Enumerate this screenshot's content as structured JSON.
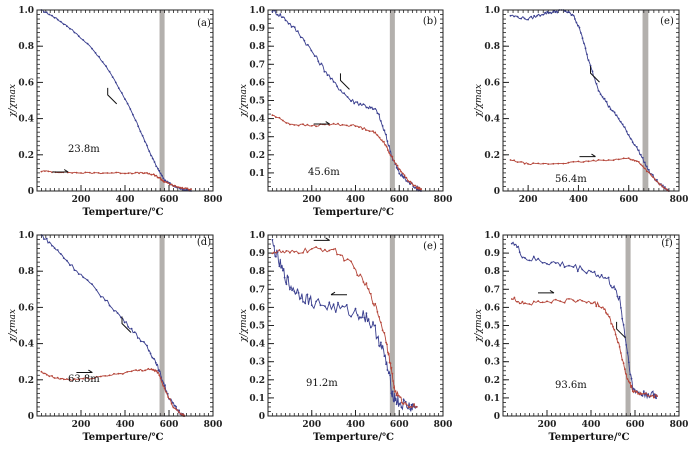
{
  "colors": {
    "cooling": "#3a3f8f",
    "heating": "#b5463a",
    "band": "#b3b0ad",
    "axis": "#222222"
  },
  "chart_data": [
    {
      "type": "line",
      "panel_label": "(a)",
      "depth": "23.8m",
      "xlabel": "Temperture/℃",
      "ylabel": "χ/χmax",
      "xlim": [
        0,
        800
      ],
      "ylim": [
        0,
        1.0
      ],
      "xticks": [
        200,
        400,
        600,
        800
      ],
      "yticks": [
        0,
        0.2,
        0.4,
        0.6,
        0.8,
        1.0
      ],
      "band": [
        557,
        580
      ],
      "series": [
        {
          "name": "cooling",
          "x": [
            20,
            80,
            150,
            250,
            330,
            400,
            460,
            510,
            550,
            580,
            620,
            660,
            700
          ],
          "y": [
            1.0,
            0.96,
            0.9,
            0.79,
            0.66,
            0.51,
            0.36,
            0.22,
            0.12,
            0.06,
            0.03,
            0.01,
            0.0
          ],
          "noise": 0.004
        },
        {
          "name": "heating",
          "x": [
            20,
            100,
            200,
            300,
            400,
            480,
            530,
            560,
            580,
            620,
            660,
            700
          ],
          "y": [
            0.11,
            0.105,
            0.1,
            0.1,
            0.1,
            0.1,
            0.09,
            0.07,
            0.05,
            0.03,
            0.015,
            0.01
          ],
          "noise": 0.004
        }
      ],
      "arrows": [
        {
          "series": "cooling",
          "direction": "up-left",
          "at": [
            335,
            0.52
          ]
        },
        {
          "series": "heating",
          "direction": "right",
          "at": [
            110,
            0.105
          ]
        }
      ]
    },
    {
      "type": "line",
      "panel_label": "(b)",
      "depth": "45.6m",
      "xlabel": "Temperture/℃",
      "ylabel": "χ/χmax",
      "xlim": [
        0,
        800
      ],
      "ylim": [
        0,
        1.0
      ],
      "xticks": [
        200,
        400,
        600,
        800
      ],
      "yticks": [
        0.1,
        0.2,
        0.3,
        0.4,
        0.5,
        0.6,
        0.7,
        0.8,
        0.9,
        1.0
      ],
      "band": [
        557,
        580
      ],
      "series": [
        {
          "name": "cooling",
          "x": [
            20,
            80,
            150,
            230,
            300,
            380,
            450,
            500,
            540,
            570,
            600,
            640,
            680,
            700
          ],
          "y": [
            1.0,
            0.95,
            0.86,
            0.72,
            0.6,
            0.5,
            0.47,
            0.44,
            0.3,
            0.18,
            0.1,
            0.05,
            0.02,
            0.0
          ],
          "noise": 0.013
        },
        {
          "name": "heating",
          "x": [
            20,
            100,
            200,
            300,
            400,
            480,
            530,
            560,
            600,
            640,
            680,
            700
          ],
          "y": [
            0.42,
            0.37,
            0.36,
            0.37,
            0.36,
            0.33,
            0.27,
            0.2,
            0.12,
            0.06,
            0.02,
            0.01
          ],
          "noise": 0.006
        }
      ],
      "arrows": [
        {
          "series": "cooling",
          "direction": "up-left",
          "at": [
            345,
            0.6
          ]
        },
        {
          "series": "heating",
          "direction": "right",
          "at": [
            250,
            0.37
          ]
        }
      ]
    },
    {
      "type": "line",
      "panel_label": "(e)",
      "depth": "56.4m",
      "xlabel": "",
      "ylabel": "χ/χmax",
      "xlim": [
        100,
        800
      ],
      "ylim": [
        0,
        1.0
      ],
      "xticks": [
        200,
        400,
        600,
        800
      ],
      "yticks": [
        0,
        0.2,
        0.4,
        0.6,
        0.8,
        1.0
      ],
      "band": [
        655,
        678
      ],
      "series": [
        {
          "name": "cooling",
          "x": [
            130,
            200,
            260,
            300,
            340,
            380,
            410,
            440,
            480,
            520,
            560,
            600,
            640,
            680,
            720,
            760
          ],
          "y": [
            0.97,
            0.95,
            0.98,
            0.99,
            1.0,
            0.97,
            0.88,
            0.72,
            0.56,
            0.47,
            0.4,
            0.31,
            0.22,
            0.11,
            0.04,
            0.0
          ],
          "noise": 0.008
        },
        {
          "name": "heating",
          "x": [
            130,
            200,
            300,
            400,
            500,
            600,
            640,
            680,
            720,
            760
          ],
          "y": [
            0.17,
            0.15,
            0.15,
            0.16,
            0.17,
            0.18,
            0.16,
            0.1,
            0.04,
            0.0
          ],
          "noise": 0.004
        }
      ],
      "arrows": [
        {
          "series": "cooling",
          "direction": "up-left",
          "at": [
            460,
            0.64
          ]
        },
        {
          "series": "heating",
          "direction": "right",
          "at": [
            440,
            0.19
          ]
        }
      ]
    },
    {
      "type": "line",
      "panel_label": "(d)",
      "depth": "63.8m",
      "xlabel": "Temperture/℃",
      "ylabel": "χ/χmax",
      "xlim": [
        0,
        800
      ],
      "ylim": [
        0,
        1.0
      ],
      "xticks": [
        200,
        400,
        600,
        800
      ],
      "yticks": [
        0,
        0.2,
        0.4,
        0.6,
        0.8,
        1.0
      ],
      "band": [
        557,
        580
      ],
      "series": [
        {
          "name": "cooling",
          "x": [
            20,
            80,
            150,
            250,
            350,
            430,
            500,
            540,
            570,
            600,
            640,
            670
          ],
          "y": [
            1.0,
            0.93,
            0.84,
            0.72,
            0.59,
            0.48,
            0.38,
            0.3,
            0.2,
            0.1,
            0.03,
            0.0
          ],
          "noise": 0.01
        },
        {
          "name": "heating",
          "x": [
            20,
            80,
            150,
            250,
            350,
            450,
            520,
            550,
            580,
            620,
            660,
            670
          ],
          "y": [
            0.24,
            0.21,
            0.2,
            0.21,
            0.23,
            0.25,
            0.26,
            0.24,
            0.15,
            0.05,
            0.01,
            0.0
          ],
          "noise": 0.006
        }
      ],
      "arrows": [
        {
          "series": "cooling",
          "direction": "up-left",
          "at": [
            400,
            0.5
          ]
        },
        {
          "series": "heating",
          "direction": "right",
          "at": [
            220,
            0.24
          ]
        }
      ]
    },
    {
      "type": "line",
      "panel_label": "(e)",
      "depth": "91.2m",
      "xlabel": "Temperture/℃",
      "ylabel": "χ/χmax",
      "xlim": [
        0,
        800
      ],
      "ylim": [
        0,
        1.0
      ],
      "xticks": [
        200,
        400,
        600,
        800
      ],
      "yticks": [
        0,
        0.1,
        0.2,
        0.3,
        0.4,
        0.5,
        0.6,
        0.7,
        0.8,
        0.9,
        1.0
      ],
      "band": [
        557,
        580
      ],
      "series": [
        {
          "name": "cooling",
          "x": [
            20,
            60,
            100,
            150,
            200,
            300,
            400,
            450,
            500,
            540,
            570,
            600,
            650,
            680
          ],
          "y": [
            0.95,
            0.82,
            0.72,
            0.67,
            0.63,
            0.6,
            0.57,
            0.55,
            0.45,
            0.3,
            0.12,
            0.07,
            0.05,
            0.05
          ],
          "noise": 0.035
        },
        {
          "name": "heating",
          "x": [
            20,
            100,
            200,
            300,
            380,
            450,
            500,
            540,
            560,
            580,
            620,
            680
          ],
          "y": [
            0.91,
            0.9,
            0.92,
            0.92,
            0.84,
            0.72,
            0.58,
            0.42,
            0.28,
            0.14,
            0.07,
            0.05
          ],
          "noise": 0.015
        }
      ],
      "arrows": [
        {
          "series": "cooling",
          "direction": "left",
          "at": [
            320,
            0.67
          ]
        },
        {
          "series": "heating",
          "direction": "right",
          "at": [
            250,
            0.97
          ]
        }
      ]
    },
    {
      "type": "line",
      "panel_label": "(f)",
      "depth": "93.6m",
      "xlabel": "Temperture/℃",
      "ylabel": "χ/χmax",
      "xlim": [
        0,
        800
      ],
      "ylim": [
        0,
        1.0
      ],
      "xticks": [
        200,
        400,
        600,
        800
      ],
      "yticks": [
        0,
        0.1,
        0.2,
        0.3,
        0.4,
        0.5,
        0.6,
        0.7,
        0.8,
        0.9,
        1.0
      ],
      "band": [
        557,
        580
      ],
      "series": [
        {
          "name": "cooling",
          "x": [
            40,
            100,
            200,
            300,
            400,
            480,
            530,
            560,
            590,
            630,
            680,
            700
          ],
          "y": [
            0.97,
            0.87,
            0.85,
            0.83,
            0.8,
            0.75,
            0.65,
            0.4,
            0.15,
            0.12,
            0.12,
            0.11
          ],
          "noise": 0.02
        },
        {
          "name": "heating",
          "x": [
            40,
            100,
            200,
            300,
            400,
            460,
            500,
            530,
            560,
            590,
            630,
            700
          ],
          "y": [
            0.65,
            0.62,
            0.63,
            0.64,
            0.63,
            0.6,
            0.5,
            0.38,
            0.22,
            0.14,
            0.12,
            0.11
          ],
          "noise": 0.012
        }
      ],
      "arrows": [
        {
          "series": "cooling",
          "direction": "up-left",
          "at": [
            530,
            0.47
          ]
        },
        {
          "series": "heating",
          "direction": "right",
          "at": [
            200,
            0.68
          ]
        }
      ]
    }
  ]
}
